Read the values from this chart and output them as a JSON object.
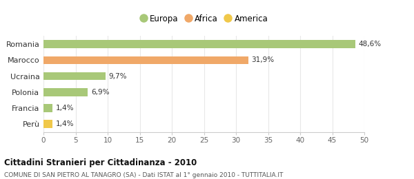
{
  "categories": [
    "Perù",
    "Francia",
    "Polonia",
    "Ucraina",
    "Marocco",
    "Romania"
  ],
  "values": [
    1.4,
    1.4,
    6.9,
    9.7,
    31.9,
    48.6
  ],
  "labels": [
    "1,4%",
    "1,4%",
    "6,9%",
    "9,7%",
    "31,9%",
    "48,6%"
  ],
  "colors": [
    "#f0c84a",
    "#a8c878",
    "#a8c878",
    "#a8c878",
    "#f0a868",
    "#a8c878"
  ],
  "legend_items": [
    {
      "label": "Europa",
      "color": "#a8c878"
    },
    {
      "label": "Africa",
      "color": "#f0a868"
    },
    {
      "label": "America",
      "color": "#f0c84a"
    }
  ],
  "xlim": [
    0,
    50
  ],
  "xticks": [
    0,
    5,
    10,
    15,
    20,
    25,
    30,
    35,
    40,
    45,
    50
  ],
  "title": "Cittadini Stranieri per Cittadinanza - 2010",
  "subtitle": "COMUNE DI SAN PIETRO AL TANAGRO (SA) - Dati ISTAT al 1° gennaio 2010 - TUTTITALIA.IT",
  "background_color": "#ffffff",
  "grid_color": "#e8e8e8",
  "bar_height": 0.5
}
